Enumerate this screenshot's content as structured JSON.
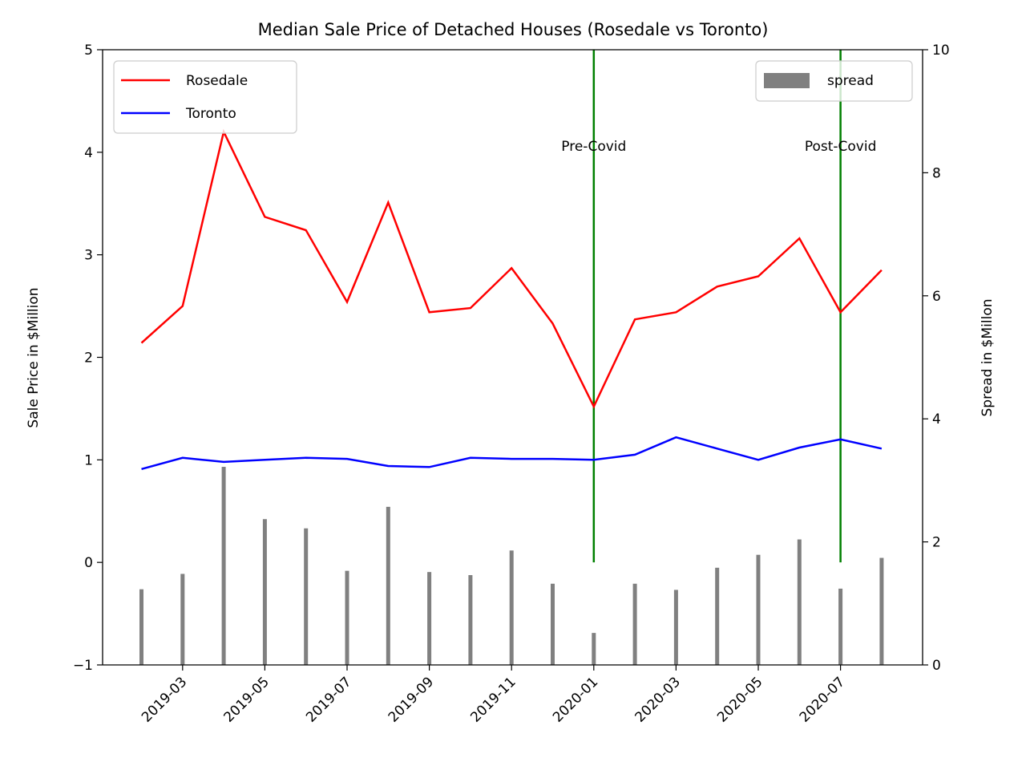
{
  "chart_data": {
    "type": "line",
    "title": "Median Sale Price of Detached Houses (Rosedale vs Toronto)",
    "ylabel": "Sale Price in $Million",
    "y2label": "Spread in $Millon",
    "xlabel": "",
    "ylim": [
      -1,
      5
    ],
    "y2lim": [
      0,
      10
    ],
    "yticks": [
      -1,
      0,
      1,
      2,
      3,
      4,
      5
    ],
    "y2ticks": [
      0,
      2,
      4,
      6,
      8,
      10
    ],
    "x": [
      "2019-02",
      "2019-03",
      "2019-04",
      "2019-05",
      "2019-06",
      "2019-07",
      "2019-08",
      "2019-09",
      "2019-10",
      "2019-11",
      "2019-12",
      "2020-01",
      "2020-02",
      "2020-03",
      "2020-04",
      "2020-05",
      "2020-06",
      "2020-07",
      "2020-08"
    ],
    "xtick_labels": [
      "2019-03",
      "2019-05",
      "2019-07",
      "2019-09",
      "2019-11",
      "2020-01",
      "2020-03",
      "2020-05",
      "2020-07"
    ],
    "series": [
      {
        "name": "Rosedale",
        "color": "#ff0000",
        "axis": "left",
        "values": [
          2.14,
          2.5,
          4.2,
          3.37,
          3.24,
          2.54,
          3.51,
          2.44,
          2.48,
          2.87,
          2.33,
          1.52,
          2.37,
          2.44,
          2.69,
          2.79,
          3.16,
          2.44,
          2.85
        ]
      },
      {
        "name": "Toronto",
        "color": "#0000ff",
        "axis": "left",
        "values": [
          0.91,
          1.02,
          0.98,
          1.0,
          1.02,
          1.01,
          0.94,
          0.93,
          1.02,
          1.01,
          1.01,
          1.0,
          1.05,
          1.22,
          1.11,
          1.0,
          1.12,
          1.2,
          1.11
        ]
      },
      {
        "name": "spread",
        "type": "bar",
        "color": "#808080",
        "axis": "right",
        "values": [
          1.23,
          1.48,
          3.22,
          2.37,
          2.22,
          1.53,
          2.57,
          1.51,
          1.46,
          1.86,
          1.32,
          0.52,
          1.32,
          1.22,
          1.58,
          1.79,
          2.04,
          1.24,
          1.74
        ]
      }
    ],
    "vlines": [
      {
        "x": "2020-01",
        "label": "Pre-Covid",
        "color": "#008000",
        "ymax": 5,
        "ymin": 0
      },
      {
        "x": "2020-07",
        "label": "Post-Covid",
        "color": "#008000",
        "ymax": 5,
        "ymin": 0
      }
    ],
    "legends": [
      {
        "placement": "top-left",
        "entries": [
          "Rosedale",
          "Toronto"
        ]
      },
      {
        "placement": "top-right",
        "entries": [
          "spread"
        ]
      }
    ],
    "grid": false
  }
}
